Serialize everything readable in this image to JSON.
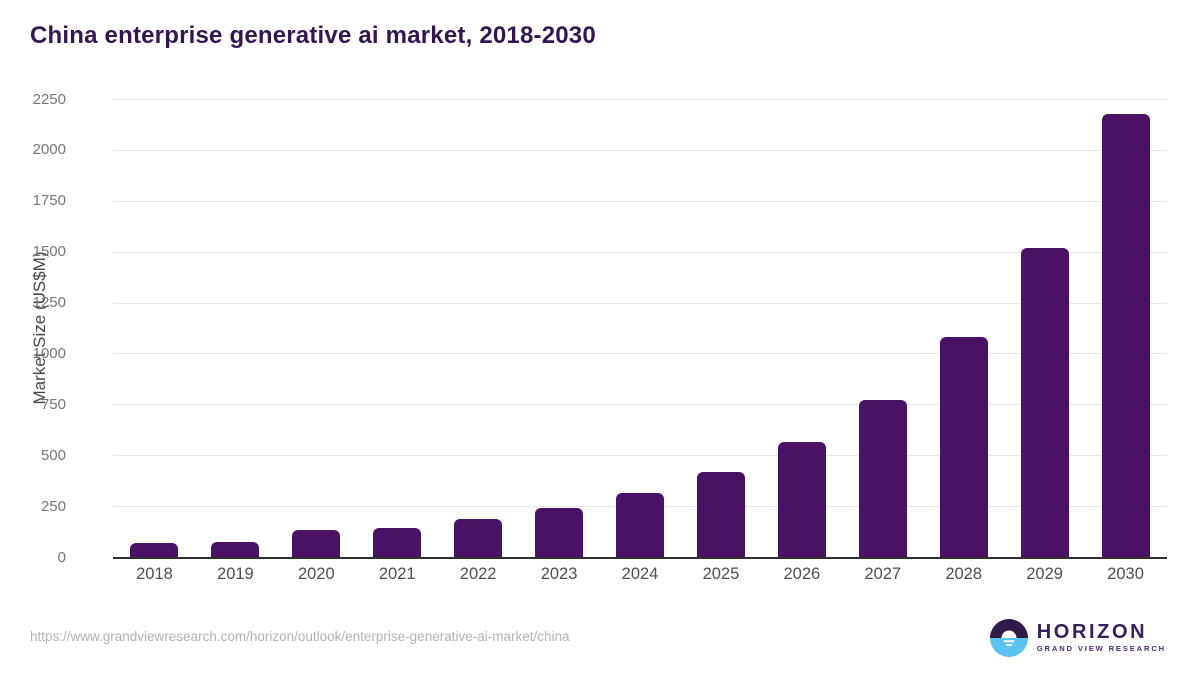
{
  "title": "China enterprise generative ai market, 2018-2030",
  "chart_data": {
    "type": "bar",
    "title": "China enterprise generative ai market, 2018-2030",
    "categories": [
      "2018",
      "2019",
      "2020",
      "2021",
      "2022",
      "2023",
      "2024",
      "2025",
      "2026",
      "2027",
      "2028",
      "2029",
      "2030"
    ],
    "values": [
      70,
      75,
      135,
      145,
      185,
      240,
      315,
      420,
      565,
      770,
      1080,
      1520,
      2175
    ],
    "xlabel": "",
    "ylabel": "Market Size (US$M)",
    "ylim": [
      0,
      2250
    ],
    "ytick_step": 250,
    "yticks": [
      0,
      250,
      500,
      750,
      1000,
      1250,
      1500,
      1750,
      2000,
      2250
    ],
    "grid": true,
    "legend": "none",
    "bar_color": "#4a1264",
    "gridline_color": "#e8e8e8",
    "axis_line_color": "#2f2f2f"
  },
  "footer": {
    "source_url": "https://www.grandviewresearch.com/horizon/outlook/enterprise-generative-ai-market/china",
    "logo": {
      "name": "HORIZON",
      "subtitle": "GRAND VIEW RESEARCH",
      "icon": "horizon-sun-circle-icon",
      "colors": {
        "circle_top": "#2e1b47",
        "circle_bottom": "#5bc3f0",
        "sun": "#ffffff"
      }
    }
  }
}
